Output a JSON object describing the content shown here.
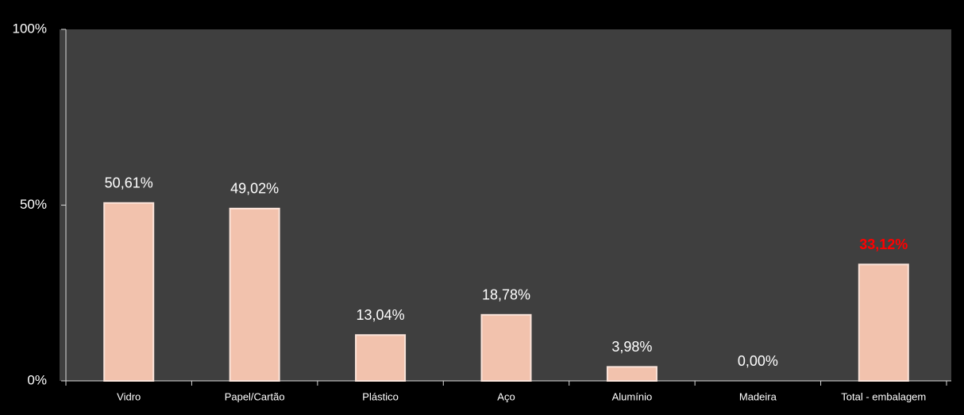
{
  "chart_data": {
    "type": "bar",
    "categories": [
      "Vidro",
      "Papel/Cartão",
      "Plástico",
      "Aço",
      "Alumínio",
      "Madeira",
      "Total - embalagem"
    ],
    "values": [
      50.61,
      49.02,
      13.04,
      18.78,
      3.98,
      0.0,
      33.12
    ],
    "value_labels": [
      "50,61%",
      "49,02%",
      "13,04%",
      "18,78%",
      "3,98%",
      "0,00%",
      "33,12%"
    ],
    "value_label_colors": [
      "#ffffff",
      "#ffffff",
      "#ffffff",
      "#ffffff",
      "#ffffff",
      "#ffffff",
      "#ff0000"
    ],
    "color": "#f2c2ad",
    "ylim": [
      0,
      100
    ],
    "yticks": [
      {
        "value": 0,
        "label": "0%"
      },
      {
        "value": 50,
        "label": "50%"
      },
      {
        "value": 100,
        "label": "100%"
      }
    ]
  }
}
